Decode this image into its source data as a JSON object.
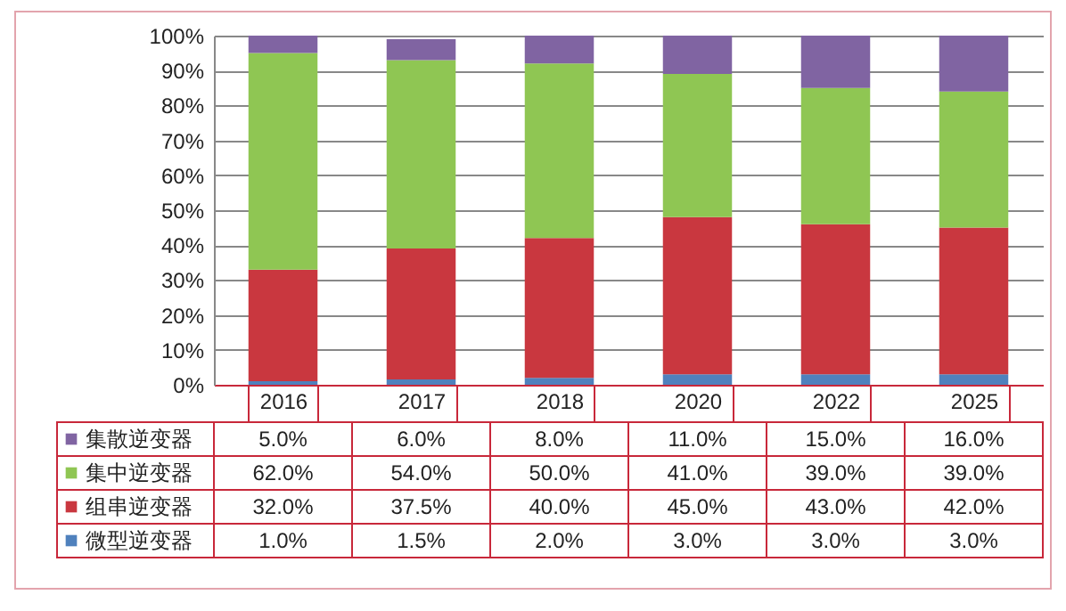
{
  "chart_data": {
    "type": "bar",
    "stacked": true,
    "categories": [
      "2016",
      "2017",
      "2018",
      "2020",
      "2022",
      "2025"
    ],
    "ylim": [
      0,
      100
    ],
    "yticks": [
      {
        "value": 0,
        "label": "0%"
      },
      {
        "value": 10,
        "label": "10%"
      },
      {
        "value": 20,
        "label": "20%"
      },
      {
        "value": 30,
        "label": "30%"
      },
      {
        "value": 40,
        "label": "40%"
      },
      {
        "value": 50,
        "label": "50%"
      },
      {
        "value": 60,
        "label": "60%"
      },
      {
        "value": 70,
        "label": "70%"
      },
      {
        "value": 80,
        "label": "80%"
      },
      {
        "value": 90,
        "label": "90%"
      },
      {
        "value": 100,
        "label": "100%"
      }
    ],
    "grid": "y",
    "legend": "bottom",
    "series": [
      {
        "name": "微型逆变器",
        "color": "#4f81bd",
        "values": [
          1.0,
          1.5,
          2.0,
          3.0,
          3.0,
          3.0
        ],
        "value_labels": [
          "1.0%",
          "1.5%",
          "2.0%",
          "3.0%",
          "3.0%",
          "3.0%"
        ]
      },
      {
        "name": "组串逆变器",
        "color": "#c9373f",
        "values": [
          32.0,
          37.5,
          40.0,
          45.0,
          43.0,
          42.0
        ],
        "value_labels": [
          "32.0%",
          "37.5%",
          "40.0%",
          "45.0%",
          "43.0%",
          "42.0%"
        ]
      },
      {
        "name": "集中逆变器",
        "color": "#8fc653",
        "values": [
          62.0,
          54.0,
          50.0,
          41.0,
          39.0,
          39.0
        ],
        "value_labels": [
          "62.0%",
          "54.0%",
          "50.0%",
          "41.0%",
          "39.0%",
          "39.0%"
        ]
      },
      {
        "name": "集散逆变器",
        "color": "#8064a2",
        "values": [
          5.0,
          6.0,
          8.0,
          11.0,
          15.0,
          16.0
        ],
        "value_labels": [
          "5.0%",
          "6.0%",
          "8.0%",
          "11.0%",
          "15.0%",
          "16.0%"
        ]
      }
    ]
  }
}
